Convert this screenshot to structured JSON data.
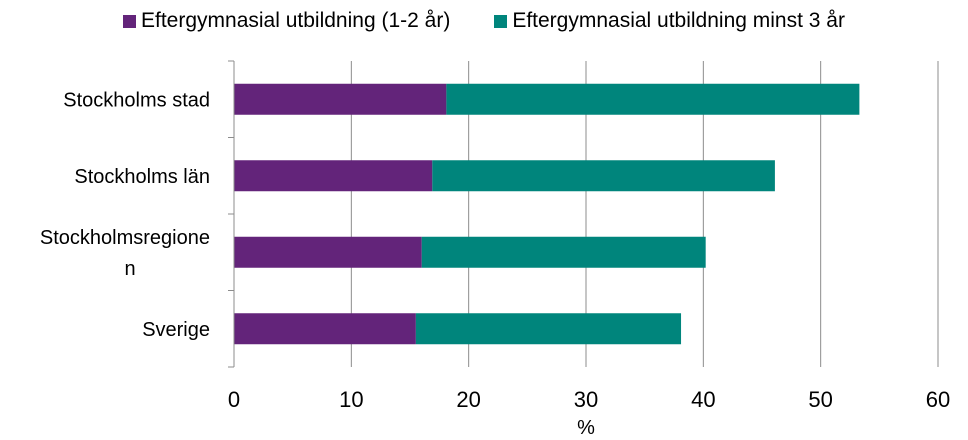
{
  "chart_data": {
    "type": "bar",
    "orientation": "horizontal",
    "stacked": true,
    "categories": [
      "Stockholms stad",
      "Stockholms län",
      "Stockholmsregione n",
      "Sverige"
    ],
    "category_label_lines": [
      [
        "Stockholms stad"
      ],
      [
        "Stockholms län"
      ],
      [
        "Stockholmsregione",
        "n"
      ],
      [
        "Sverige"
      ]
    ],
    "series": [
      {
        "name": "Eftergymnasial utbildning (1-2 år)",
        "color": "#63247a",
        "values": [
          18.1,
          16.9,
          16.0,
          15.5
        ]
      },
      {
        "name": "Eftergymnasial utbildning minst 3 år",
        "color": "#00857c",
        "values": [
          35.2,
          29.2,
          24.2,
          22.6
        ]
      }
    ],
    "x_ticks": [
      0,
      10,
      20,
      30,
      40,
      50,
      60
    ],
    "xlim": [
      0,
      60
    ],
    "xlabel": "%",
    "title": "",
    "grid": "vertical",
    "legend_position": "top"
  }
}
